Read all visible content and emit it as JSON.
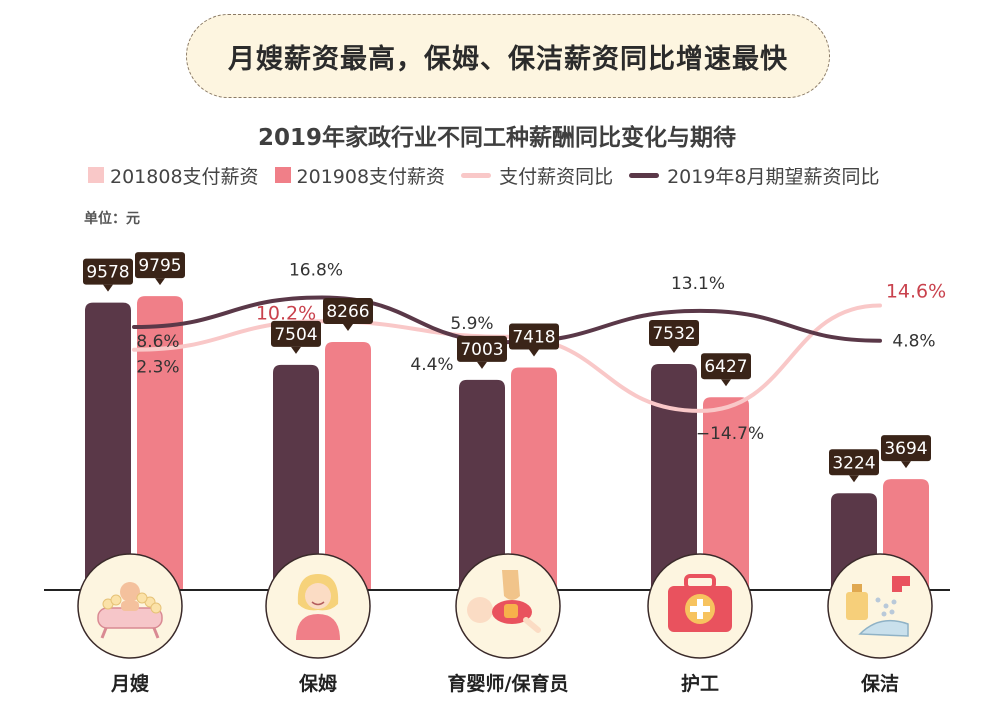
{
  "banner": "月嫂薪资最高，保姆、保洁薪资同比增速最快",
  "chart_data": {
    "type": "bar",
    "title": "2019年家政行业不同工种薪酬同比变化与期待",
    "unit": "单位：元",
    "categories": [
      "月嫂",
      "保姆",
      "育婴师/保育员",
      "护工",
      "保洁"
    ],
    "series": [
      {
        "name": "201808支付薪资",
        "kind": "bar",
        "color": "#5a3848",
        "values": [
          9578,
          7504,
          7003,
          7532,
          3224
        ]
      },
      {
        "name": "201908支付薪资",
        "kind": "bar",
        "color": "#f07f88",
        "values": [
          9795,
          8266,
          7418,
          6427,
          3694
        ]
      },
      {
        "name": "支付薪资同比",
        "kind": "line",
        "color": "#f9c8c8",
        "values": [
          2.3,
          10.2,
          5.9,
          -14.7,
          14.6
        ],
        "labels": [
          "2.3%",
          "10.2%",
          "5.9%",
          "−14.7%",
          "14.6%"
        ]
      },
      {
        "name": "2019年8月期望薪资同比",
        "kind": "line",
        "color": "#5a3848",
        "values": [
          8.6,
          16.8,
          4.4,
          13.1,
          4.8
        ],
        "labels": [
          "8.6%",
          "16.8%",
          "4.4%",
          "13.1%",
          "4.8%"
        ]
      }
    ],
    "legend_colors": [
      "#f9c8c8",
      "#f07f88",
      "#f9c8c8",
      "#5a3848"
    ],
    "highlight_color": "#c9424d",
    "icons": [
      "baby-bath-icon",
      "nanny-icon",
      "infant-care-icon",
      "first-aid-kit-icon",
      "cleaning-icon"
    ]
  }
}
